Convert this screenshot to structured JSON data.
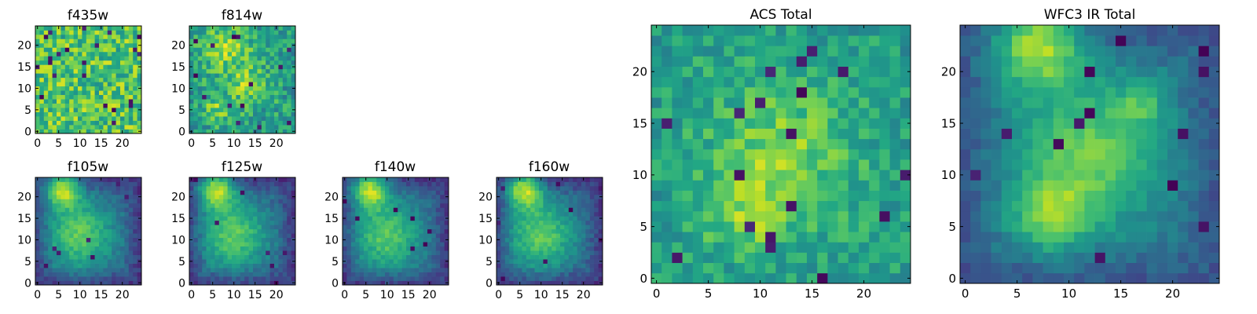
{
  "figure": {
    "background": "#ffffff",
    "colormap": "viridis"
  },
  "chart_data": [
    {
      "id": "f435w",
      "type": "heatmap",
      "title": "f435w",
      "grid_size": 25,
      "xticks": [
        0,
        5,
        10,
        15,
        20
      ],
      "yticks": [
        0,
        5,
        10,
        15,
        20
      ],
      "xlim": [
        -0.5,
        24.5
      ],
      "ylim": [
        -0.5,
        24.5
      ],
      "pattern": {
        "bg": 0.72,
        "noise": 0.22,
        "outskirt_drop": 0.0,
        "blobs": [],
        "dark_pixels": 22
      }
    },
    {
      "id": "f814w",
      "type": "heatmap",
      "title": "f814w",
      "grid_size": 25,
      "xticks": [
        0,
        5,
        10,
        15,
        20
      ],
      "yticks": [
        0,
        5,
        10,
        15,
        20
      ],
      "xlim": [
        -0.5,
        24.5
      ],
      "ylim": [
        -0.5,
        24.5
      ],
      "pattern": {
        "bg": 0.58,
        "noise": 0.18,
        "outskirt_drop": 0.05,
        "blobs": [
          {
            "x": 8,
            "y": 20,
            "amp": 0.28,
            "sigma": 4
          },
          {
            "x": 13,
            "y": 11,
            "amp": 0.22,
            "sigma": 3
          },
          {
            "x": 6,
            "y": 5,
            "amp": 0.2,
            "sigma": 2.5
          }
        ],
        "dark_pixels": 14
      }
    },
    {
      "id": "f105w",
      "type": "heatmap",
      "title": "f105w",
      "grid_size": 25,
      "xticks": [
        0,
        5,
        10,
        15,
        20
      ],
      "yticks": [
        0,
        5,
        10,
        15,
        20
      ],
      "xlim": [
        -0.5,
        24.5
      ],
      "ylim": [
        -0.5,
        24.5
      ],
      "pattern": {
        "bg": 0.3,
        "noise": 0.07,
        "outskirt_drop": 0.15,
        "blobs": [
          {
            "x": 6,
            "y": 22,
            "amp": 0.6,
            "sigma": 3
          },
          {
            "x": 10,
            "y": 11,
            "amp": 0.45,
            "sigma": 6
          }
        ],
        "dark_pixels": 8
      }
    },
    {
      "id": "f125w",
      "type": "heatmap",
      "title": "f125w",
      "grid_size": 25,
      "xticks": [
        0,
        5,
        10,
        15,
        20
      ],
      "yticks": [
        0,
        5,
        10,
        15,
        20
      ],
      "xlim": [
        -0.5,
        24.5
      ],
      "ylim": [
        -0.5,
        24.5
      ],
      "pattern": {
        "bg": 0.3,
        "noise": 0.07,
        "outskirt_drop": 0.15,
        "blobs": [
          {
            "x": 6,
            "y": 22,
            "amp": 0.6,
            "sigma": 3
          },
          {
            "x": 10,
            "y": 11,
            "amp": 0.45,
            "sigma": 6
          }
        ],
        "dark_pixels": 8
      }
    },
    {
      "id": "f140w",
      "type": "heatmap",
      "title": "f140w",
      "grid_size": 25,
      "xticks": [
        0,
        5,
        10,
        15,
        20
      ],
      "yticks": [
        0,
        5,
        10,
        15,
        20
      ],
      "xlim": [
        -0.5,
        24.5
      ],
      "ylim": [
        -0.5,
        24.5
      ],
      "pattern": {
        "bg": 0.3,
        "noise": 0.07,
        "outskirt_drop": 0.15,
        "blobs": [
          {
            "x": 6,
            "y": 22,
            "amp": 0.6,
            "sigma": 3
          },
          {
            "x": 10,
            "y": 11,
            "amp": 0.45,
            "sigma": 6
          }
        ],
        "dark_pixels": 8
      }
    },
    {
      "id": "f160w",
      "type": "heatmap",
      "title": "f160w",
      "grid_size": 25,
      "xticks": [
        0,
        5,
        10,
        15,
        20
      ],
      "yticks": [
        0,
        5,
        10,
        15,
        20
      ],
      "xlim": [
        -0.5,
        24.5
      ],
      "ylim": [
        -0.5,
        24.5
      ],
      "pattern": {
        "bg": 0.3,
        "noise": 0.07,
        "outskirt_drop": 0.15,
        "blobs": [
          {
            "x": 6,
            "y": 22,
            "amp": 0.6,
            "sigma": 3
          },
          {
            "x": 10,
            "y": 11,
            "amp": 0.45,
            "sigma": 6
          }
        ],
        "dark_pixels": 8
      }
    },
    {
      "id": "acs-total",
      "type": "heatmap",
      "title": "ACS Total",
      "grid_size": 25,
      "xticks": [
        0,
        5,
        10,
        15,
        20
      ],
      "yticks": [
        0,
        5,
        10,
        15,
        20
      ],
      "xlim": [
        -0.5,
        24.5
      ],
      "ylim": [
        -0.5,
        24.5
      ],
      "pattern": {
        "bg": 0.6,
        "noise": 0.13,
        "outskirt_drop": 0.05,
        "blobs": [
          {
            "x": 12,
            "y": 12,
            "amp": 0.22,
            "sigma": 4
          },
          {
            "x": 9,
            "y": 6,
            "amp": 0.2,
            "sigma": 2.5
          }
        ],
        "dark_pixels": 18
      }
    },
    {
      "id": "wfc3-ir-total",
      "type": "heatmap",
      "title": "WFC3 IR Total",
      "grid_size": 25,
      "xticks": [
        0,
        5,
        10,
        15,
        20
      ],
      "yticks": [
        0,
        5,
        10,
        15,
        20
      ],
      "xlim": [
        -0.5,
        24.5
      ],
      "ylim": [
        -0.5,
        24.5
      ],
      "pattern": {
        "bg": 0.38,
        "noise": 0.06,
        "outskirt_drop": 0.12,
        "blobs": [
          {
            "x": 7,
            "y": 23,
            "amp": 0.55,
            "sigma": 3
          },
          {
            "x": 12,
            "y": 12,
            "amp": 0.4,
            "sigma": 5
          },
          {
            "x": 8,
            "y": 6,
            "amp": 0.35,
            "sigma": 2.5
          },
          {
            "x": 17,
            "y": 17,
            "amp": 0.22,
            "sigma": 1.6
          }
        ],
        "dark_pixels": 14
      }
    }
  ]
}
